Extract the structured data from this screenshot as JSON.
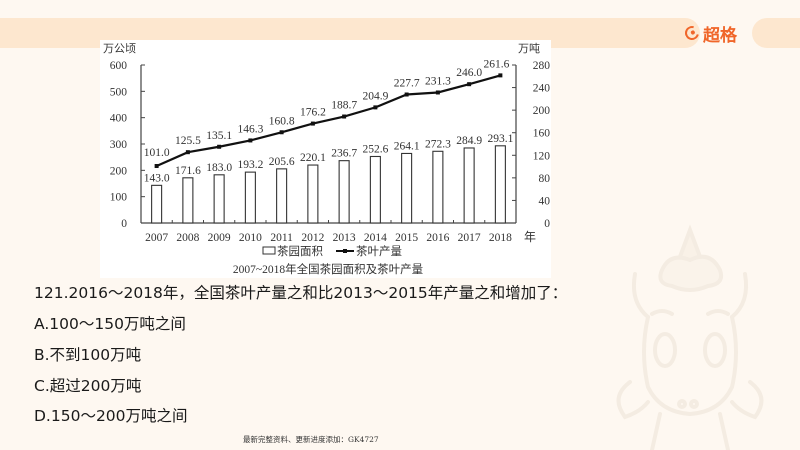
{
  "header": {
    "brand_name": "超格",
    "brand_icon": "g-logo-icon",
    "accent_color": "#F0662A",
    "band_color": "#FDE7CF"
  },
  "chart_data": {
    "type": "bar+line",
    "title": "2007~2018年全国茶园面积及茶叶产量",
    "categories": [
      "2007",
      "2008",
      "2009",
      "2010",
      "2011",
      "2012",
      "2013",
      "2014",
      "2015",
      "2016",
      "2017",
      "2018"
    ],
    "xlabel": "年",
    "y_left": {
      "label": "万公顷",
      "ticks": [
        0,
        100,
        200,
        300,
        400,
        500,
        600
      ],
      "ylim": [
        0,
        600
      ]
    },
    "y_right": {
      "label": "万吨",
      "ticks": [
        0,
        40,
        80,
        120,
        160,
        200,
        240,
        280
      ],
      "ylim": [
        0,
        280
      ]
    },
    "series": [
      {
        "name": "茶园面积",
        "type": "bar",
        "axis": "left",
        "values": [
          143.0,
          171.6,
          183.0,
          193.2,
          205.6,
          220.1,
          236.7,
          252.6,
          264.1,
          272.3,
          284.9,
          293.1
        ],
        "labels": [
          "143.0",
          "171.6",
          "183.0",
          "193.2",
          "205.6",
          "220.1",
          "236.7",
          "252.6",
          "264.1",
          "272.3",
          "284.9",
          "293.1"
        ]
      },
      {
        "name": "茶叶产量",
        "type": "line",
        "axis": "right",
        "values": [
          101.0,
          125.5,
          135.1,
          146.3,
          160.8,
          176.2,
          188.7,
          204.9,
          227.7,
          231.3,
          246.0,
          261.6
        ],
        "labels": [
          "101.0",
          "125.5",
          "135.1",
          "146.3",
          "160.8",
          "176.2",
          "188.7",
          "204.9",
          "227.7",
          "231.3",
          "246.0",
          "261.6"
        ]
      }
    ],
    "legend": [
      "茶园面积",
      "茶叶产量"
    ],
    "legend_position": "bottom",
    "grid": false
  },
  "question": {
    "text": "121.2016～2018年，全国茶叶产量之和比2013～2015年产量之和增加了：",
    "options": [
      {
        "key": "A",
        "text": "A.100～150万吨之间"
      },
      {
        "key": "B",
        "text": "B.不到100万吨"
      },
      {
        "key": "C",
        "text": "C.超过200万吨"
      },
      {
        "key": "D",
        "text": "D.150～200万吨之间"
      }
    ]
  },
  "footer": {
    "note": "最新完整资料、更新进度添加：GK4727"
  }
}
